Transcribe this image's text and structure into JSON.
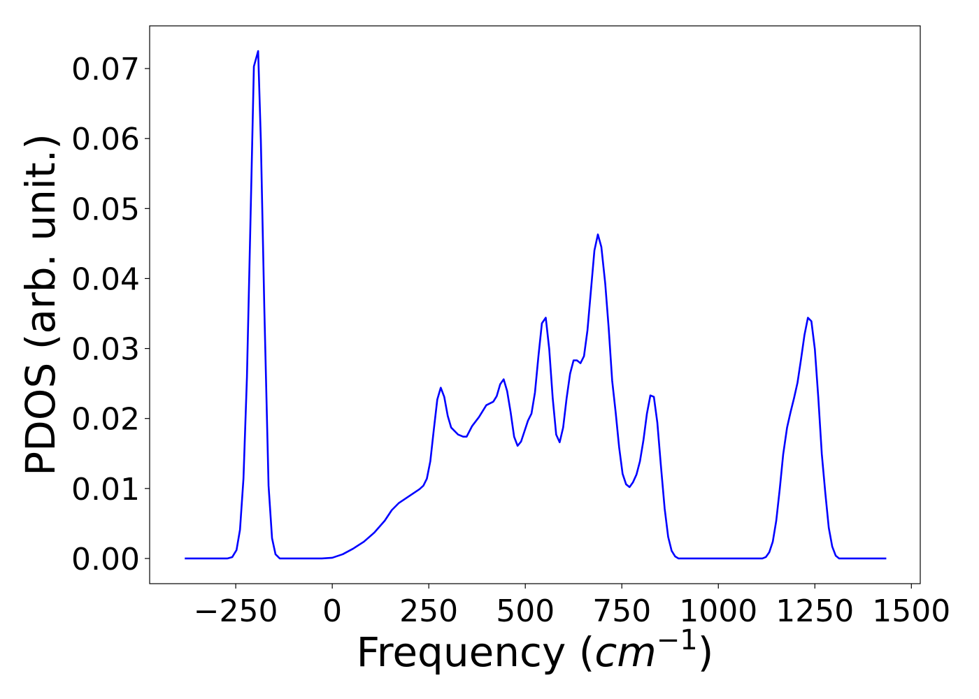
{
  "chart_data": {
    "type": "line",
    "xlabel": {
      "text": "Frequency (",
      "italic": "cm",
      "sup": "−1",
      "end": ")"
    },
    "ylabel": "PDOS (arb. unit.)",
    "series": [
      {
        "color": "#0000ff",
        "x": [
          -382,
          -272,
          -259,
          -248,
          -239,
          -230,
          -221,
          -212,
          -203,
          -192,
          -185,
          -176,
          -165,
          -156,
          -147,
          -136,
          -27,
          0,
          27,
          54,
          82,
          109,
          136,
          154,
          172,
          199,
          226,
          236,
          245,
          254,
          263,
          272,
          281,
          290,
          299,
          308,
          326,
          339,
          348,
          362,
          380,
          399,
          417,
          426,
          435,
          444,
          453,
          462,
          471,
          480,
          489,
          498,
          507,
          516,
          525,
          534,
          543,
          553,
          562,
          571,
          580,
          589,
          598,
          607,
          616,
          625,
          634,
          643,
          652,
          661,
          670,
          679,
          688,
          697,
          707,
          716,
          725,
          734,
          743,
          752,
          761,
          770,
          779,
          788,
          797,
          806,
          815,
          824,
          833,
          842,
          851,
          861,
          870,
          879,
          888,
          897,
          1114,
          1123,
          1132,
          1141,
          1150,
          1159,
          1168,
          1178,
          1187,
          1196,
          1205,
          1214,
          1223,
          1232,
          1241,
          1250,
          1259,
          1268,
          1277,
          1286,
          1295,
          1304,
          1313,
          1435
        ],
        "values": [
          0,
          0,
          0.0002,
          0.0012,
          0.0041,
          0.0114,
          0.0259,
          0.0478,
          0.0703,
          0.0725,
          0.0598,
          0.0358,
          0.0104,
          0.0029,
          0.0006,
          0,
          0,
          0.0001,
          0.0006,
          0.0014,
          0.0024,
          0.0037,
          0.0054,
          0.0069,
          0.0079,
          0.0089,
          0.0099,
          0.0104,
          0.0114,
          0.0139,
          0.0184,
          0.0227,
          0.0244,
          0.0231,
          0.0204,
          0.0187,
          0.0177,
          0.0174,
          0.0174,
          0.0189,
          0.0202,
          0.0219,
          0.0224,
          0.0232,
          0.0249,
          0.0256,
          0.0239,
          0.0209,
          0.0174,
          0.0161,
          0.0167,
          0.0182,
          0.0197,
          0.0207,
          0.0237,
          0.0289,
          0.0336,
          0.0344,
          0.0299,
          0.0229,
          0.0177,
          0.0166,
          0.0187,
          0.0229,
          0.0264,
          0.0283,
          0.0283,
          0.0279,
          0.0289,
          0.0326,
          0.0383,
          0.044,
          0.0463,
          0.0445,
          0.0393,
          0.0329,
          0.0254,
          0.0209,
          0.0159,
          0.0121,
          0.0106,
          0.0102,
          0.0109,
          0.012,
          0.0139,
          0.0169,
          0.0207,
          0.0233,
          0.0231,
          0.0194,
          0.0134,
          0.0071,
          0.0031,
          0.0011,
          0.0003,
          0,
          0,
          0.0002,
          0.0009,
          0.0024,
          0.0054,
          0.0099,
          0.0149,
          0.0187,
          0.0209,
          0.0229,
          0.0251,
          0.0284,
          0.0319,
          0.0344,
          0.0339,
          0.0299,
          0.0229,
          0.0149,
          0.0094,
          0.0044,
          0.0017,
          0.0004,
          0,
          0
        ]
      }
    ],
    "xlim": [
      -473,
      1523
    ],
    "ylim": [
      -0.0036,
      0.0761
    ],
    "xticks": [
      {
        "value": -250,
        "label": "−250"
      },
      0,
      250,
      500,
      750,
      1000,
      1250,
      1500
    ],
    "yticks": [
      {
        "value": 0,
        "label": "0.00"
      },
      0.01,
      0.02,
      0.03,
      0.04,
      0.05,
      0.06,
      0.07
    ]
  }
}
